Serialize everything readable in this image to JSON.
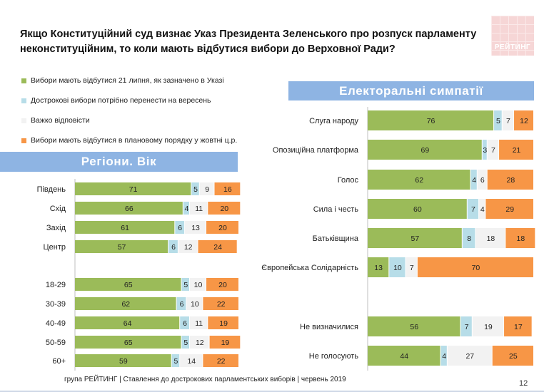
{
  "title": "Якщо Конституційний суд визнає Указ Президента Зеленського про розпуск парламенту неконституційним, то коли мають відбутися вибори до Верховної Ради?",
  "logo_text": "РЕЙТИНГ",
  "footer": "група РЕЙТИНГ | Ставлення до дострокових парламентських виборів  | червень  2019",
  "page_number": "12",
  "colors": {
    "green": "#9bbb59",
    "lightblue": "#b7dde8",
    "lightgray": "#f2f2f2",
    "orange": "#f79646",
    "banner": "#8eb4e3"
  },
  "legend": [
    {
      "label": "Вибори мають відбутися 21 липня, як зазначено в Указі",
      "color": "#9bbb59"
    },
    {
      "label": "Дострокові вибори потрібно перенести на вересень",
      "color": "#b7dde8"
    },
    {
      "label": "Важко відповісти",
      "color": "#f2f2f2"
    },
    {
      "label": "Вибори мають відбутися в плановому порядку у жовтні ц.р.",
      "color": "#f79646"
    }
  ],
  "chart_data": [
    {
      "type": "bar",
      "stacked": true,
      "orientation": "horizontal",
      "title": "Регіони. Вік",
      "categories": [
        "Південь",
        "Схід",
        "Захід",
        "Центр",
        "18-29",
        "30-39",
        "40-49",
        "50-59",
        "60+"
      ],
      "series": [
        {
          "name": "Вибори мають відбутися 21 липня, як зазначено в Указі",
          "values": [
            71,
            66,
            61,
            57,
            65,
            62,
            64,
            65,
            59
          ]
        },
        {
          "name": "Дострокові вибори потрібно перенести на вересень",
          "values": [
            5,
            4,
            6,
            6,
            5,
            6,
            6,
            5,
            5
          ]
        },
        {
          "name": "Важко відповісти",
          "values": [
            9,
            11,
            13,
            12,
            10,
            10,
            11,
            12,
            14
          ]
        },
        {
          "name": "Вибори мають відбутися в плановому порядку у жовтні ц.р.",
          "values": [
            16,
            20,
            20,
            24,
            20,
            22,
            19,
            19,
            22
          ]
        }
      ]
    },
    {
      "type": "bar",
      "stacked": true,
      "orientation": "horizontal",
      "title": "Електоральні симпатії",
      "categories": [
        "Слуга народу",
        "Опозиційна платформа",
        "Голос",
        "Сила і честь",
        "Батьківщина",
        "Європейська Солідарність",
        "Не визначилися",
        "Не голосують"
      ],
      "series": [
        {
          "name": "Вибори мають відбутися 21 липня, як зазначено в Указі",
          "values": [
            76,
            69,
            62,
            60,
            57,
            13,
            56,
            44
          ]
        },
        {
          "name": "Дострокові вибори потрібно перенести на вересень",
          "values": [
            5,
            3,
            4,
            7,
            8,
            10,
            7,
            4
          ]
        },
        {
          "name": "Важко відповісти",
          "values": [
            7,
            7,
            6,
            4,
            18,
            7,
            19,
            27
          ]
        },
        {
          "name": "Вибори мають відбутися в плановому порядку у жовтні ц.р.",
          "values": [
            12,
            21,
            28,
            29,
            18,
            70,
            17,
            25
          ]
        }
      ]
    }
  ]
}
